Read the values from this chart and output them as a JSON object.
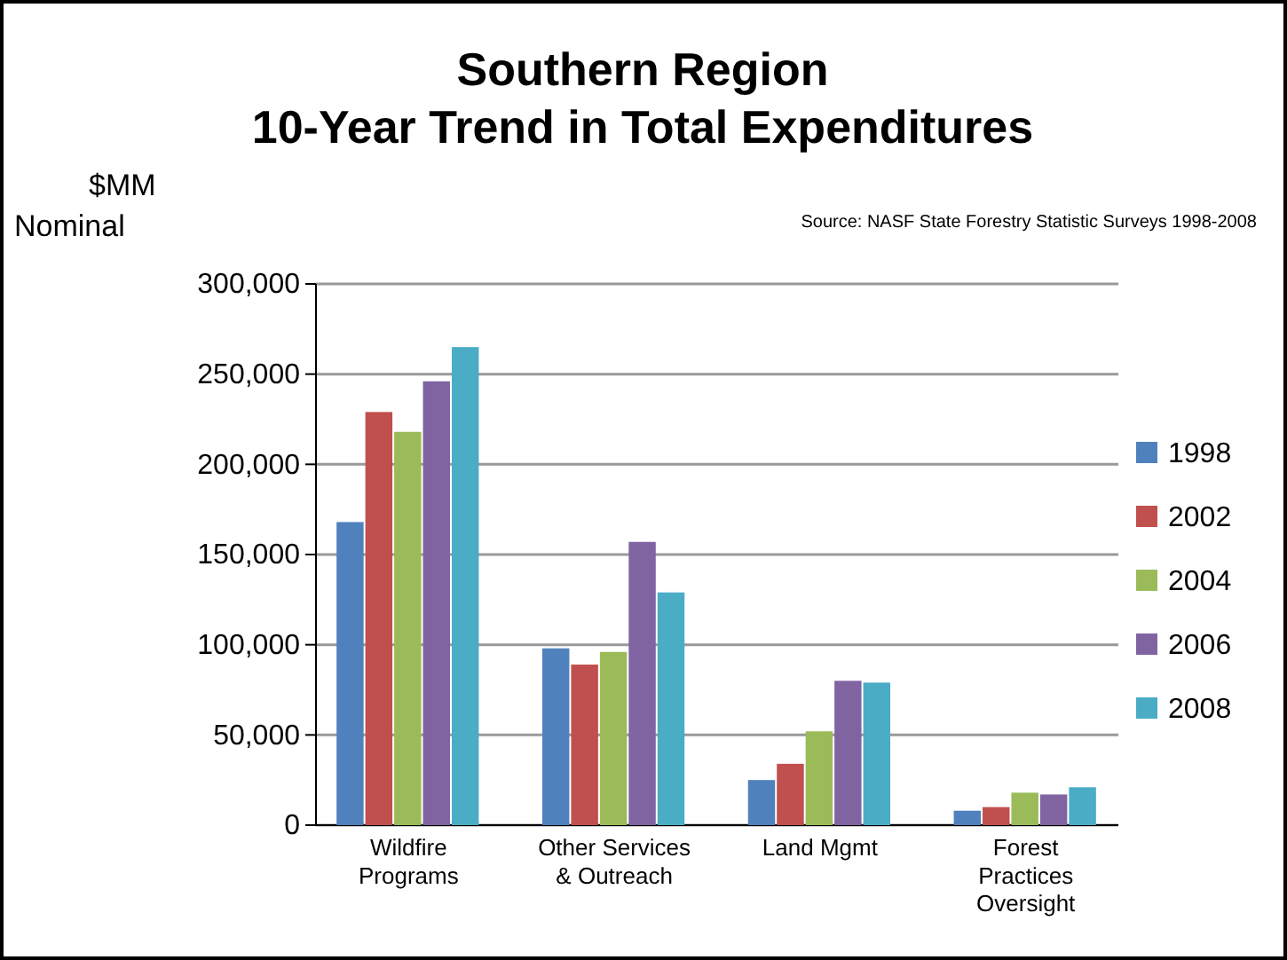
{
  "chart_data": {
    "type": "bar",
    "title": "Southern Region\n10-Year Trend in Total Expenditures",
    "ylabel": "$MM\nNominal",
    "annotations": [
      "Source:  NASF State Forestry Statistic Surveys 1998-2008"
    ],
    "categories": [
      "Wildfire Programs",
      "Other Services & Outreach",
      "Land Mgmt",
      "Forest Practices Oversight"
    ],
    "series": [
      {
        "name": "1998",
        "color": "#4f81bd",
        "values": [
          168000,
          98000,
          25000,
          8000
        ]
      },
      {
        "name": "2002",
        "color": "#c0504d",
        "values": [
          229000,
          89000,
          34000,
          10000
        ]
      },
      {
        "name": "2004",
        "color": "#9bbb59",
        "values": [
          218000,
          96000,
          52000,
          18000
        ]
      },
      {
        "name": "2006",
        "color": "#8064a2",
        "values": [
          246000,
          157000,
          80000,
          17000
        ]
      },
      {
        "name": "2008",
        "color": "#4bacc6",
        "values": [
          265000,
          129000,
          79000,
          21000
        ]
      }
    ],
    "ylim": [
      0,
      300000
    ],
    "yticks": [
      {
        "value": 0,
        "label": "0"
      },
      {
        "value": 50000,
        "label": "50,000"
      },
      {
        "value": 100000,
        "label": "100,000"
      },
      {
        "value": 150000,
        "label": "150,000"
      },
      {
        "value": 200000,
        "label": "200,000"
      },
      {
        "value": 250000,
        "label": "250,000"
      },
      {
        "value": 300000,
        "label": "300,000"
      }
    ],
    "grid": "y",
    "legend": "right"
  }
}
